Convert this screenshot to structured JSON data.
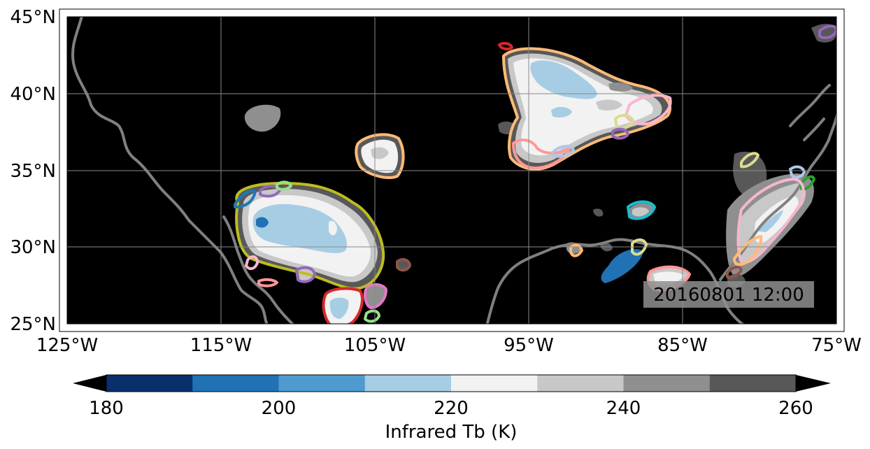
{
  "map": {
    "lat_ticks": [
      "45°N",
      "40°N",
      "35°N",
      "30°N",
      "25°N"
    ],
    "lon_ticks": [
      "125°W",
      "115°W",
      "105°W",
      "95°W",
      "85°W",
      "75°W"
    ],
    "timestamp": "20160801 12:00",
    "extent": {
      "lon": [
        -125,
        -75
      ],
      "lat": [
        25,
        45
      ]
    },
    "grid": true,
    "background": "#000000"
  },
  "colorbar": {
    "label": "Infrared Tb (K)",
    "tick_labels": [
      "180",
      "200",
      "220",
      "240",
      "260"
    ],
    "bins": [
      180,
      190,
      200,
      210,
      220,
      230,
      240,
      250,
      260
    ],
    "colors": [
      "#08306b",
      "#2171b5",
      "#4f9bcf",
      "#a6cde3",
      "#f2f2f2",
      "#c8c8c8",
      "#8f8f8f",
      "#585858"
    ],
    "extend": "both"
  },
  "coast_color": "#808080",
  "track_colors": [
    "#ffbb78",
    "#ff9896",
    "#aec7e8",
    "#c5b0d5",
    "#f7b6d2",
    "#dbdb8d",
    "#bcbd22",
    "#9467bd",
    "#17becf",
    "#1f77b4",
    "#d62728",
    "#2ca02c",
    "#98df8a",
    "#8c564b",
    "#c49c94",
    "#e377c2"
  ]
}
